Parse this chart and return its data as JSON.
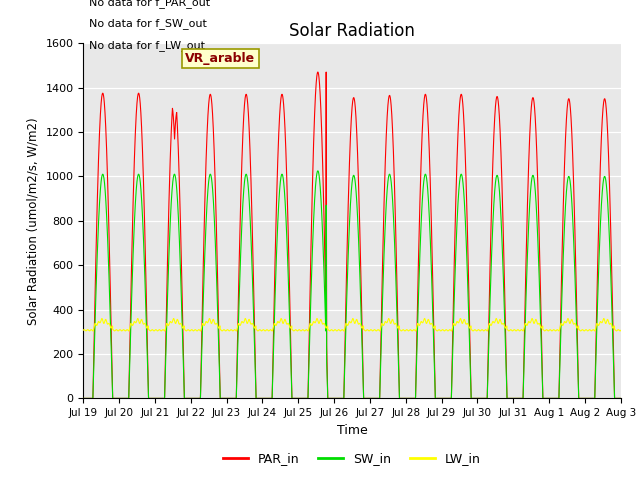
{
  "title": "Solar Radiation",
  "xlabel": "Time",
  "ylabel": "Solar Radiation (umol/m2/s, W/m2)",
  "ylim": [
    0,
    1600
  ],
  "yticks": [
    0,
    200,
    400,
    600,
    800,
    1000,
    1200,
    1400,
    1600
  ],
  "xtick_labels": [
    "Jul 19",
    "Jul 20",
    "Jul 21",
    "Jul 22",
    "Jul 23",
    "Jul 24",
    "Jul 25",
    "Jul 26",
    "Jul 27",
    "Jul 28",
    "Jul 29",
    "Jul 30",
    "Jul 31",
    "Aug 1",
    "Aug 2",
    "Aug 3"
  ],
  "colors": {
    "PAR_in": "#ff0000",
    "SW_in": "#00dd00",
    "LW_in": "#ffff00"
  },
  "no_data_texts": [
    "No data for f_PAR_out",
    "No data for f_SW_out",
    "No data for f_LW_out"
  ],
  "vr_arable_label": "VR_arable",
  "plot_bg": "#e8e8e8",
  "fig_bg": "#ffffff",
  "PAR_peaks": [
    1375,
    1375,
    1375,
    1370,
    1370,
    1370,
    1470,
    1355,
    1365,
    1370,
    1370,
    1360,
    1355,
    1350,
    1350
  ],
  "SW_peaks": [
    1010,
    1010,
    1010,
    1010,
    1010,
    1010,
    1025,
    1005,
    1010,
    1010,
    1010,
    1005,
    1005,
    1000,
    1000
  ],
  "LW_base": 315,
  "LW_amp": 35,
  "n_days": 15,
  "points_per_day": 288
}
